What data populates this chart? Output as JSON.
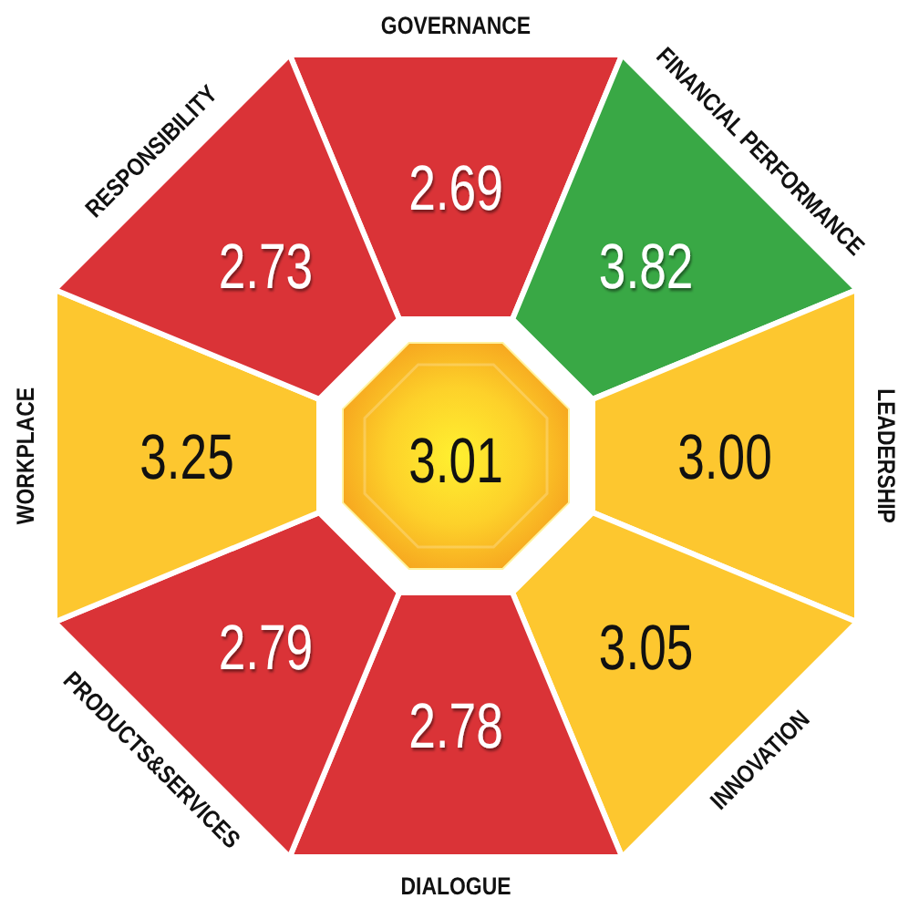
{
  "chart_data": {
    "type": "other",
    "categories": [
      "GOVERNANCE",
      "FINANCIAL PERFORMANCE",
      "LEADERSHIP",
      "INNOVATION",
      "DIALOGUE",
      "PRODUCTS&SERVICES",
      "WORKPLACE",
      "RESPONSIBILITY"
    ],
    "values": [
      2.69,
      3.82,
      3.0,
      3.05,
      2.78,
      2.79,
      3.25,
      2.73
    ],
    "value_labels": [
      "2.69",
      "3.82",
      "3.00",
      "3.05",
      "2.78",
      "2.79",
      "3.25",
      "2.73"
    ],
    "colors": [
      "#da3337",
      "#39a845",
      "#fdc72f",
      "#fdc72f",
      "#da3337",
      "#da3337",
      "#fdc72f",
      "#da3337"
    ],
    "annotations": [
      "3.01"
    ]
  }
}
